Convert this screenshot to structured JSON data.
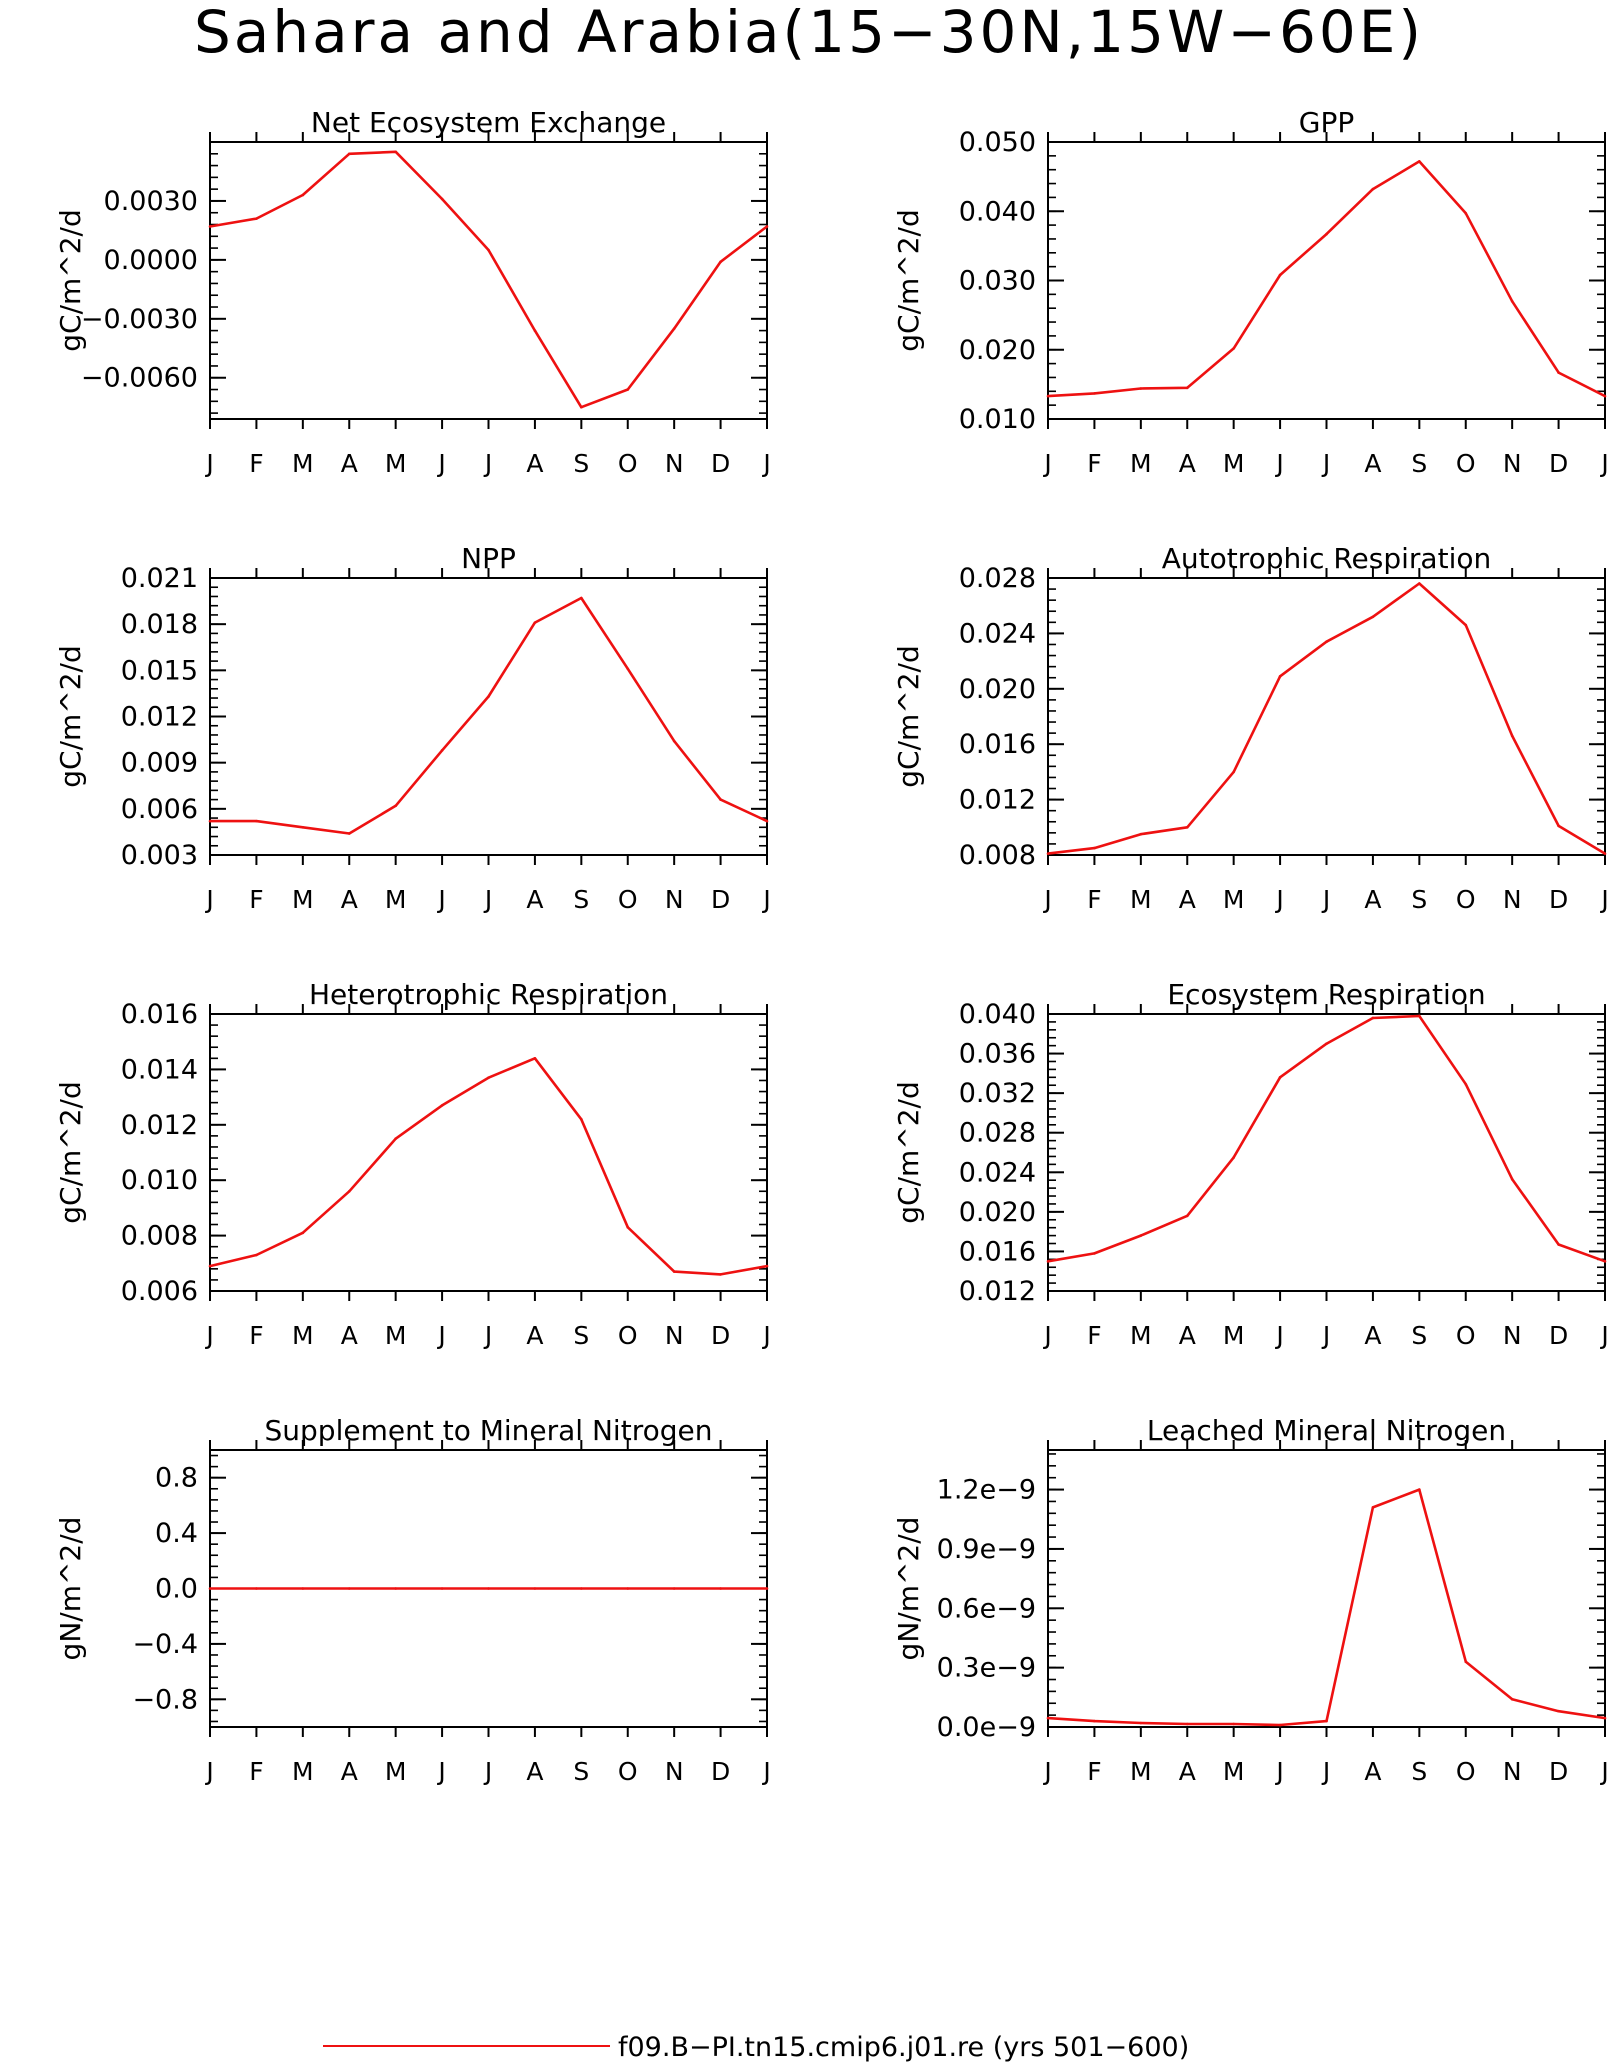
{
  "figure": {
    "title": "Sahara and Arabia(15−30N,15W−60E)",
    "series_color": "#ee1111",
    "legend": {
      "label": "f09.B−PI.tn15.cmip6.j01.re (yrs 501−600)"
    }
  },
  "chart_data": [
    {
      "type": "line",
      "title": "Net Ecosystem Exchange",
      "ylabel": "gC/m^2/d",
      "x": [
        "J",
        "F",
        "M",
        "A",
        "M",
        "J",
        "J",
        "A",
        "S",
        "O",
        "N",
        "D",
        "J"
      ],
      "values": [
        0.0017,
        0.0021,
        0.0033,
        0.0054,
        0.0055,
        0.0031,
        0.0005,
        -0.0036,
        -0.0075,
        -0.0066,
        -0.0035,
        -0.0001,
        0.0017
      ],
      "ylim": [
        -0.0081,
        0.006
      ],
      "yticks": [
        -0.006,
        -0.003,
        0.0,
        0.003
      ],
      "ytick_labels": [
        "−0.0060",
        "−0.0030",
        "0.0000",
        "0.0030"
      ],
      "minor_step": 0.0006
    },
    {
      "type": "line",
      "title": "GPP",
      "ylabel": "gC/m^2/d",
      "x": [
        "J",
        "F",
        "M",
        "A",
        "M",
        "J",
        "J",
        "A",
        "S",
        "O",
        "N",
        "D",
        "J"
      ],
      "values": [
        0.0133,
        0.0137,
        0.0144,
        0.0145,
        0.0202,
        0.0308,
        0.0367,
        0.0432,
        0.0472,
        0.0397,
        0.027,
        0.0167,
        0.0133
      ],
      "ylim": [
        0.01,
        0.05
      ],
      "yticks": [
        0.01,
        0.02,
        0.03,
        0.04,
        0.05
      ],
      "ytick_labels": [
        "0.010",
        "0.020",
        "0.030",
        "0.040",
        "0.050"
      ],
      "minor_step": 0.002
    },
    {
      "type": "line",
      "title": "NPP",
      "ylabel": "gC/m^2/d",
      "x": [
        "J",
        "F",
        "M",
        "A",
        "M",
        "J",
        "J",
        "A",
        "S",
        "O",
        "N",
        "D",
        "J"
      ],
      "values": [
        0.0052,
        0.0052,
        0.0048,
        0.0044,
        0.0062,
        0.0098,
        0.0133,
        0.0181,
        0.0197,
        0.0151,
        0.0104,
        0.0066,
        0.0052
      ],
      "ylim": [
        0.003,
        0.021
      ],
      "yticks": [
        0.003,
        0.006,
        0.009,
        0.012,
        0.015,
        0.018,
        0.021
      ],
      "ytick_labels": [
        "0.003",
        "0.006",
        "0.009",
        "0.012",
        "0.015",
        "0.018",
        "0.021"
      ],
      "minor_step": 0.0006
    },
    {
      "type": "line",
      "title": "Autotrophic Respiration",
      "ylabel": "gC/m^2/d",
      "x": [
        "J",
        "F",
        "M",
        "A",
        "M",
        "J",
        "J",
        "A",
        "S",
        "O",
        "N",
        "D",
        "J"
      ],
      "values": [
        0.0081,
        0.0085,
        0.0095,
        0.01,
        0.014,
        0.0209,
        0.0234,
        0.0252,
        0.0276,
        0.0246,
        0.0166,
        0.0101,
        0.0081
      ],
      "ylim": [
        0.008,
        0.028
      ],
      "yticks": [
        0.008,
        0.012,
        0.016,
        0.02,
        0.024,
        0.028
      ],
      "ytick_labels": [
        "0.008",
        "0.012",
        "0.016",
        "0.020",
        "0.024",
        "0.028"
      ],
      "minor_step": 0.0008
    },
    {
      "type": "line",
      "title": "Heterotrophic Respiration",
      "ylabel": "gC/m^2/d",
      "x": [
        "J",
        "F",
        "M",
        "A",
        "M",
        "J",
        "J",
        "A",
        "S",
        "O",
        "N",
        "D",
        "J"
      ],
      "values": [
        0.0069,
        0.0073,
        0.0081,
        0.0096,
        0.0115,
        0.0127,
        0.0137,
        0.0144,
        0.0122,
        0.0083,
        0.0067,
        0.0066,
        0.0069
      ],
      "ylim": [
        0.006,
        0.016
      ],
      "yticks": [
        0.006,
        0.008,
        0.01,
        0.012,
        0.014,
        0.016
      ],
      "ytick_labels": [
        "0.006",
        "0.008",
        "0.010",
        "0.012",
        "0.014",
        "0.016"
      ],
      "minor_step": 0.0004
    },
    {
      "type": "line",
      "title": "Ecosystem Respiration",
      "ylabel": "gC/m^2/d",
      "x": [
        "J",
        "F",
        "M",
        "A",
        "M",
        "J",
        "J",
        "A",
        "S",
        "O",
        "N",
        "D",
        "J"
      ],
      "values": [
        0.015,
        0.0158,
        0.0176,
        0.0196,
        0.0255,
        0.0336,
        0.037,
        0.0396,
        0.0398,
        0.0329,
        0.0233,
        0.0167,
        0.015
      ],
      "ylim": [
        0.012,
        0.04
      ],
      "yticks": [
        0.012,
        0.016,
        0.02,
        0.024,
        0.028,
        0.032,
        0.036,
        0.04
      ],
      "ytick_labels": [
        "0.012",
        "0.016",
        "0.020",
        "0.024",
        "0.028",
        "0.032",
        "0.036",
        "0.040"
      ],
      "minor_step": 0.0008
    },
    {
      "type": "line",
      "title": "Supplement to Mineral Nitrogen",
      "ylabel": "gN/m^2/d",
      "x": [
        "J",
        "F",
        "M",
        "A",
        "M",
        "J",
        "J",
        "A",
        "S",
        "O",
        "N",
        "D",
        "J"
      ],
      "values": [
        0,
        0,
        0,
        0,
        0,
        0,
        0,
        0,
        0,
        0,
        0,
        0,
        0
      ],
      "ylim": [
        -1.0,
        1.0
      ],
      "yticks": [
        -0.8,
        -0.4,
        0.0,
        0.4,
        0.8
      ],
      "ytick_labels": [
        "−0.8",
        "−0.4",
        "0.0",
        "0.4",
        "0.8"
      ],
      "minor_step": 0.08
    },
    {
      "type": "line",
      "title": "Leached Mineral Nitrogen",
      "ylabel": "gN/m^2/d",
      "x": [
        "J",
        "F",
        "M",
        "A",
        "M",
        "J",
        "J",
        "A",
        "S",
        "O",
        "N",
        "D",
        "J"
      ],
      "values": [
        4.5e-11,
        3e-11,
        2e-11,
        1.5e-11,
        1.5e-11,
        1e-11,
        3e-11,
        1.11e-09,
        1.2e-09,
        3.3e-10,
        1.4e-10,
        8e-11,
        4.5e-11
      ],
      "ylim": [
        0.0,
        1.4e-09
      ],
      "yticks": [
        0.0,
        3e-10,
        6e-10,
        9e-10,
        1.2e-09
      ],
      "ytick_labels": [
        "0.0e−9",
        "0.3e−9",
        "0.6e−9",
        "0.9e−9",
        "1.2e−9"
      ],
      "minor_step": 6e-11
    }
  ]
}
